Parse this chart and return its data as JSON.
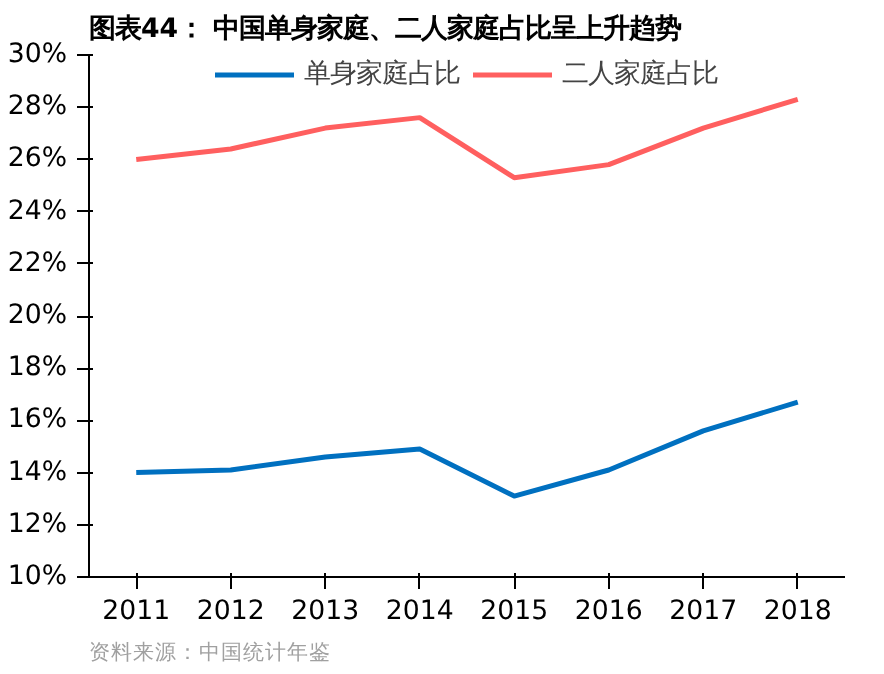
{
  "chart_data": {
    "type": "line",
    "title": "图表44：   中国单身家庭、二人家庭占比呈上升趋势",
    "annotations": [
      "资料来源：中国统计年鉴"
    ],
    "categories": [
      "2011",
      "2012",
      "2013",
      "2014",
      "2015",
      "2016",
      "2017",
      "2018"
    ],
    "series": [
      {
        "name": "单身家庭占比",
        "color": "#0070c0",
        "values": [
          14.0,
          14.1,
          14.6,
          14.9,
          13.1,
          14.1,
          15.6,
          16.7
        ]
      },
      {
        "name": "二人家庭占比",
        "color": "#ff5f5f",
        "values": [
          26.0,
          26.4,
          27.2,
          27.6,
          25.3,
          25.8,
          27.2,
          28.3
        ]
      }
    ],
    "ylim": [
      10,
      30
    ],
    "yticks": [
      {
        "value": 10,
        "label": "10%"
      },
      {
        "value": 12,
        "label": "12%"
      },
      {
        "value": 14,
        "label": "14%"
      },
      {
        "value": 16,
        "label": "16%"
      },
      {
        "value": 18,
        "label": "18%"
      },
      {
        "value": 20,
        "label": "20%"
      },
      {
        "value": 22,
        "label": "22%"
      },
      {
        "value": 24,
        "label": "24%"
      },
      {
        "value": 26,
        "label": "26%"
      },
      {
        "value": 28,
        "label": "28%"
      },
      {
        "value": 30,
        "label": "30%"
      }
    ],
    "grid": false,
    "legend": "top",
    "marker": "none",
    "line_style": "solid"
  }
}
